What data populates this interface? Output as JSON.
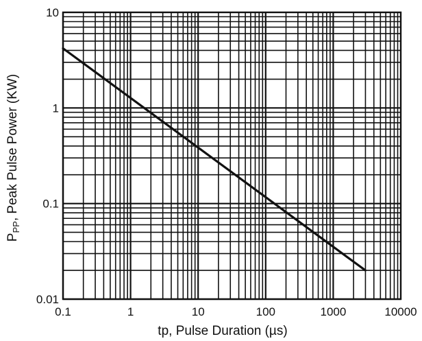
{
  "chart_data": {
    "type": "line",
    "x_scale": "log",
    "y_scale": "log",
    "xlim": [
      0.1,
      10000
    ],
    "ylim": [
      0.01,
      10
    ],
    "x_ticks": [
      0.1,
      1,
      10,
      100,
      1000,
      10000
    ],
    "x_tick_labels": [
      "0.1",
      "1",
      "10",
      "100",
      "1000",
      "10000"
    ],
    "y_ticks": [
      0.01,
      0.1,
      1,
      10
    ],
    "y_tick_labels": [
      "0.01",
      "0.1",
      "1",
      "10"
    ],
    "xlabel": "tp, Pulse Duration (µs)",
    "ylabel_main": "P",
    "ylabel_sub": "PP",
    "ylabel_rest": ", Peak Pulse Power (KW)",
    "grid": true,
    "series": [
      {
        "x": [
          0.1,
          3000
        ],
        "y": [
          4.2,
          0.02
        ]
      }
    ],
    "colors": {
      "line": "#111111",
      "grid": "#111111"
    }
  }
}
